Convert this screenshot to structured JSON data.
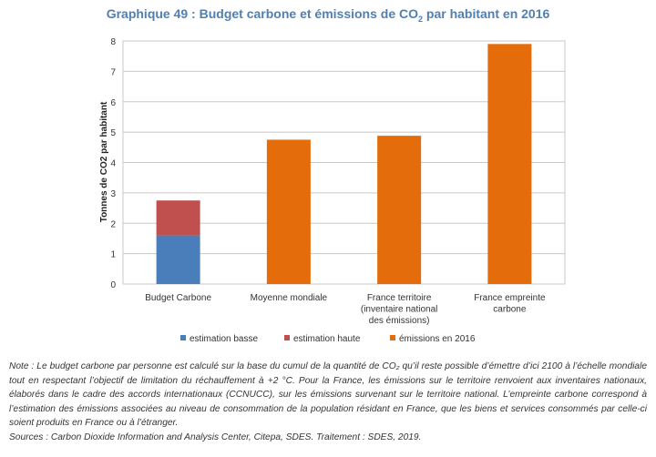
{
  "title": {
    "prefix": "Graphique 49 : Budget carbone et émissions de CO",
    "subscript": "2",
    "suffix": " par habitant en 2016"
  },
  "colors": {
    "estimation_basse": "#4a7ebb",
    "estimation_haute": "#c0504d",
    "emissions_2016": "#e46c0a",
    "title": "#4f7fb3"
  },
  "chart_data": {
    "type": "bar",
    "stacked": true,
    "categories": [
      [
        "Budget Carbone"
      ],
      [
        "Moyenne mondiale"
      ],
      [
        "France territoire",
        "(inventaire national",
        "des émissions)"
      ],
      [
        "France empreinte",
        "carbone"
      ]
    ],
    "series": [
      {
        "name": "estimation basse",
        "values": [
          1.6,
          0,
          0,
          0
        ]
      },
      {
        "name": "estimation haute",
        "values": [
          1.15,
          0,
          0,
          0
        ]
      },
      {
        "name": "émissions en 2016",
        "values": [
          0,
          4.75,
          4.88,
          7.9
        ]
      }
    ],
    "ylabel": "Tonnes de CO2 par habitant",
    "ylim": [
      0,
      8
    ],
    "yticks": [
      "0",
      "1",
      "2",
      "3",
      "4",
      "5",
      "6",
      "7",
      "8"
    ],
    "grid": true,
    "legend_position": "bottom"
  },
  "note": {
    "text": "Note : Le budget carbone par personne est calculé sur la base du cumul de la quantité de CO₂ qu’il reste possible d’émettre d’ici 2100 à l’échelle mondiale tout en respectant l’objectif de limitation du réchauffement à +2 °C. Pour la France, les émissions sur le territoire renvoient aux inventaires nationaux, élaborés dans le cadre des accords internationaux (CCNUCC), sur les émissions survenant sur le territoire national. L’empreinte carbone correspond à l’estimation des émissions associées au niveau de consommation de la population résidant en France, que les biens et services consommés par celle-ci soient produits en France ou à l’étranger.",
    "sources": "Sources : Carbon Dioxide Information and Analysis Center, Citepa, SDES. Traitement : SDES, 2019."
  }
}
